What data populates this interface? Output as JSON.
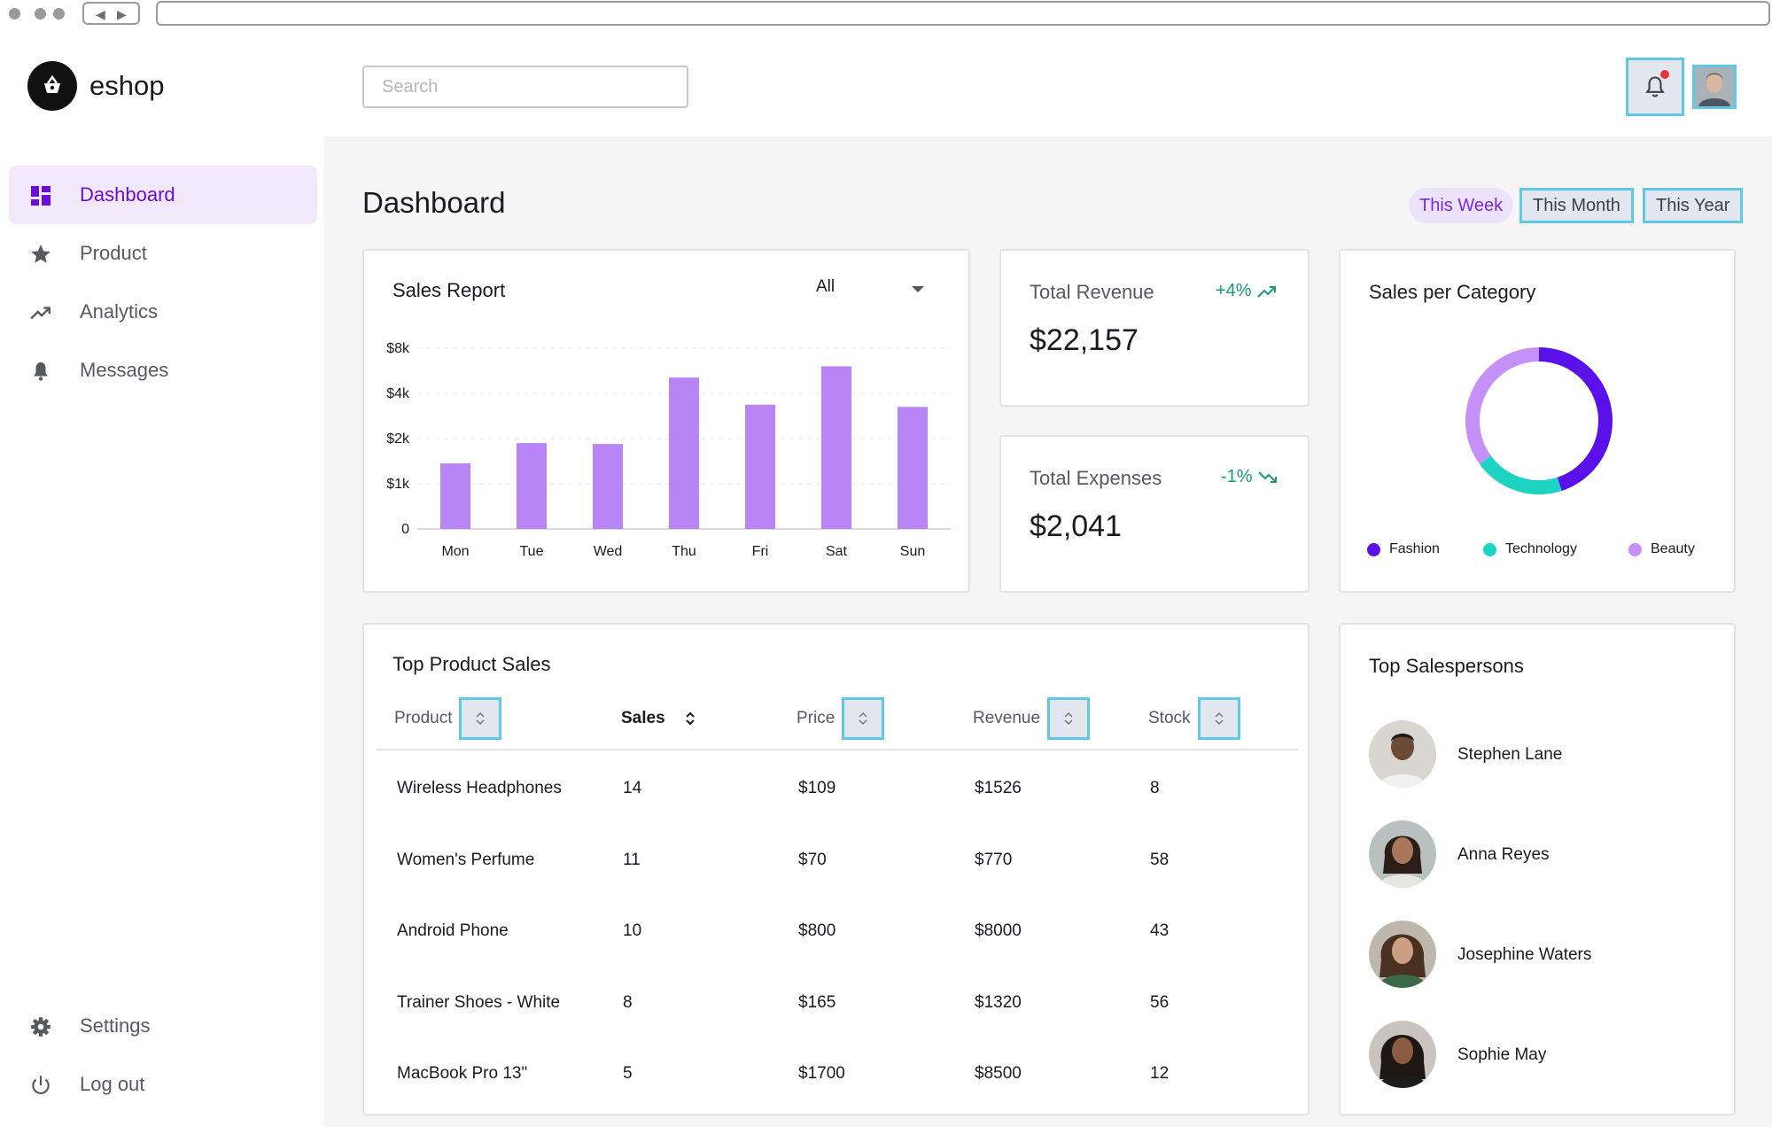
{
  "brand": {
    "name": "eshop"
  },
  "search": {
    "placeholder": "Search"
  },
  "sidebar": {
    "items": [
      {
        "label": "Dashboard",
        "icon": "dashboard-icon",
        "active": true
      },
      {
        "label": "Product",
        "icon": "star-icon"
      },
      {
        "label": "Analytics",
        "icon": "trending-up-icon"
      },
      {
        "label": "Messages",
        "icon": "bell-icon"
      }
    ],
    "bottom": [
      {
        "label": "Settings",
        "icon": "gear-icon"
      },
      {
        "label": "Log out",
        "icon": "power-icon"
      }
    ]
  },
  "page": {
    "title": "Dashboard"
  },
  "filters": [
    "This Week",
    "This Month",
    "This Year"
  ],
  "sales_report": {
    "title": "Sales Report",
    "filter_value": "All"
  },
  "chart_data": {
    "type": "bar",
    "title": "Sales Report",
    "categories": [
      "Mon",
      "Tue",
      "Wed",
      "Thu",
      "Fri",
      "Sat",
      "Sun"
    ],
    "values": [
      1450,
      1900,
      1880,
      5400,
      3500,
      6400,
      3400
    ],
    "y_ticks": [
      0,
      1000,
      2000,
      4000,
      8000
    ],
    "y_tick_labels": [
      "0",
      "$1k",
      "$2k",
      "$4k",
      "$8k"
    ],
    "ylim": [
      0,
      8000
    ],
    "y_scale": "non-linear (log-like spacing)",
    "color": "#b884f6",
    "grid": true
  },
  "revenue": {
    "label": "Total Revenue",
    "change": "+4%",
    "value": "$22,157",
    "trend": "up"
  },
  "expenses": {
    "label": "Total Expenses",
    "change": "-1%",
    "value": "$2,041",
    "trend": "down"
  },
  "category": {
    "title": "Sales per Category",
    "chart_data": {
      "type": "pie",
      "labels": [
        "Fashion",
        "Technology",
        "Beauty"
      ],
      "values": [
        45,
        20,
        35
      ],
      "colors": [
        "#5a10e8",
        "#1dd4c3",
        "#c590f8"
      ]
    }
  },
  "top_products": {
    "title": "Top Product Sales",
    "columns": [
      "Product",
      "Sales",
      "Price",
      "Revenue",
      "Stock"
    ],
    "rows": [
      [
        "Wireless Headphones",
        "14",
        "$109",
        "$1526",
        "8"
      ],
      [
        "Women's Perfume",
        "11",
        "$70",
        "$770",
        "58"
      ],
      [
        "Android Phone",
        "10",
        "$800",
        "$8000",
        "43"
      ],
      [
        "Trainer Shoes - White",
        "8",
        "$165",
        "$1320",
        "56"
      ],
      [
        "MacBook Pro 13\"",
        "5",
        "$1700",
        "$8500",
        "12"
      ]
    ]
  },
  "top_salespersons": {
    "title": "Top Salespersons",
    "people": [
      "Stephen Lane",
      "Anna Reyes",
      "Josephine Waters",
      "Sophie May"
    ]
  },
  "colors": {
    "accent": "#6a0ed6",
    "active_bg": "#f1e8fc",
    "positive": "#17987a",
    "highlight_border": "#60c8e4"
  }
}
